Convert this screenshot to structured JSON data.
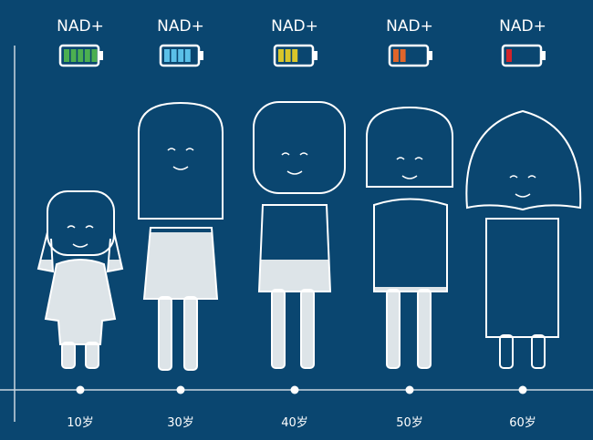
{
  "colors": {
    "background": "#0a4670",
    "outline": "#ffffff",
    "nad_fill": "#dde4e8"
  },
  "stages": [
    {
      "nad_label": "NAD+",
      "age": "10岁",
      "battery_bars": 5,
      "battery_max": 5,
      "battery_color": "#4caf50",
      "nad_level_fraction": 1.0
    },
    {
      "nad_label": "NAD+",
      "age": "30岁",
      "battery_bars": 4,
      "battery_max": 5,
      "battery_color": "#5bc0e8",
      "nad_level_fraction": 0.8
    },
    {
      "nad_label": "NAD+",
      "age": "40岁",
      "battery_bars": 3,
      "battery_max": 5,
      "battery_color": "#d8c62a",
      "nad_level_fraction": 0.6
    },
    {
      "nad_label": "NAD+",
      "age": "50岁",
      "battery_bars": 2,
      "battery_max": 5,
      "battery_color": "#e0652a",
      "nad_level_fraction": 0.4
    },
    {
      "nad_label": "NAD+",
      "age": "60岁",
      "battery_bars": 1,
      "battery_max": 5,
      "battery_color": "#d2232a",
      "nad_level_fraction": 0.0
    }
  ]
}
